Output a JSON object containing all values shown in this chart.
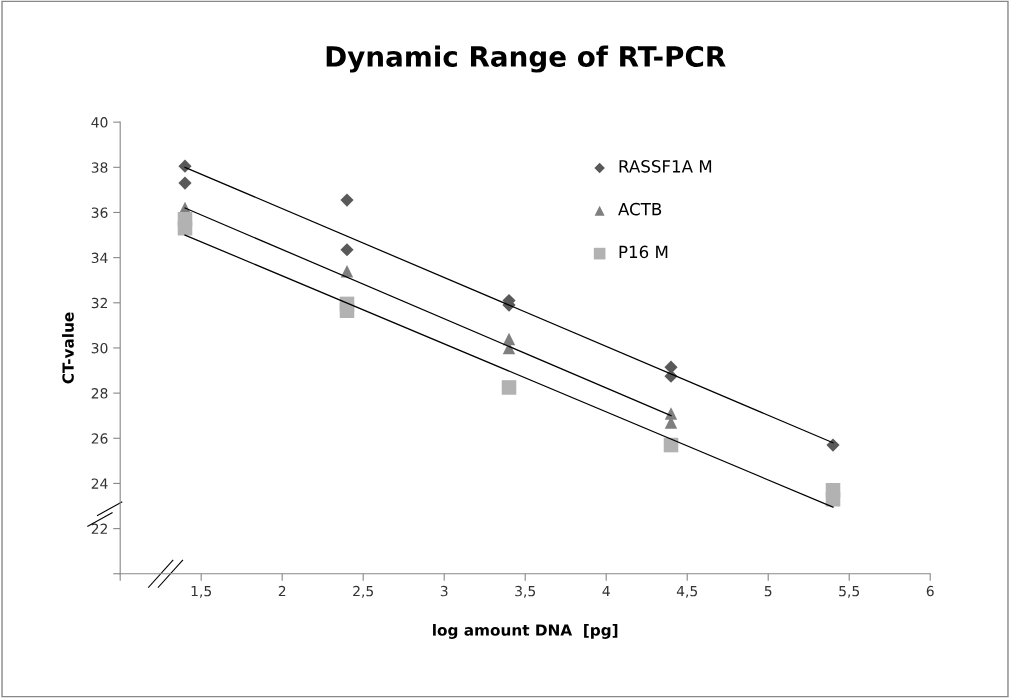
{
  "chart_data": {
    "type": "scatter",
    "title": "Dynamic Range of RT-PCR",
    "xlabel": "log amount DNA  [pg]",
    "ylabel": "CT-value",
    "xlim": [
      1,
      6
    ],
    "xticks": [
      {
        "value": 1,
        "label": null
      },
      {
        "value": 1.5,
        "label": "1,5"
      },
      2,
      {
        "value": 2.5,
        "label": "2,5"
      },
      3,
      {
        "value": 3.5,
        "label": "3,5"
      },
      4,
      {
        "value": 4.5,
        "label": "4,5"
      },
      5,
      {
        "value": 5.5,
        "label": "5,5"
      },
      6
    ],
    "ylim": [
      20,
      40
    ],
    "yticks": [
      {
        "value": 20,
        "label": null
      },
      22,
      24,
      26,
      28,
      30,
      32,
      34,
      36,
      38,
      40
    ],
    "grid": false,
    "legend": "top right",
    "series": [
      {
        "name": "RASSF1A M",
        "color": "#595959",
        "marker": "diamond",
        "x": [
          1.4,
          1.4,
          2.4,
          2.4,
          3.4,
          3.4,
          4.4,
          4.4,
          5.4
        ],
        "values": [
          38.05,
          37.3,
          36.55,
          34.35,
          32.1,
          31.9,
          29.15,
          28.75,
          25.7
        ]
      },
      {
        "name": "ACTB",
        "color": "#7f7f7f",
        "marker": "triangle",
        "x": [
          1.4,
          2.4,
          3.4,
          3.4,
          4.4,
          4.4
        ],
        "values": [
          36.2,
          33.4,
          30.4,
          30.0,
          27.1,
          26.7
        ]
      },
      {
        "name": "P16 M",
        "color": "#b2b2b2",
        "marker": "square",
        "x": [
          1.4,
          1.4,
          2.4,
          2.4,
          3.4,
          4.4,
          5.4,
          5.4
        ],
        "values": [
          35.7,
          35.3,
          31.95,
          31.65,
          28.25,
          25.7,
          23.7,
          23.3
        ]
      },
      {
        "type": "line",
        "color": "#000000",
        "x": [
          1.4,
          5.4
        ],
        "values": [
          38.0,
          25.8
        ]
      },
      {
        "type": "line",
        "color": "#000000",
        "x": [
          1.4,
          4.4
        ],
        "values": [
          36.2,
          27.0
        ]
      },
      {
        "type": "line",
        "color": "#000000",
        "x": [
          1.4,
          5.4
        ],
        "values": [
          35.0,
          22.95
        ]
      }
    ]
  }
}
